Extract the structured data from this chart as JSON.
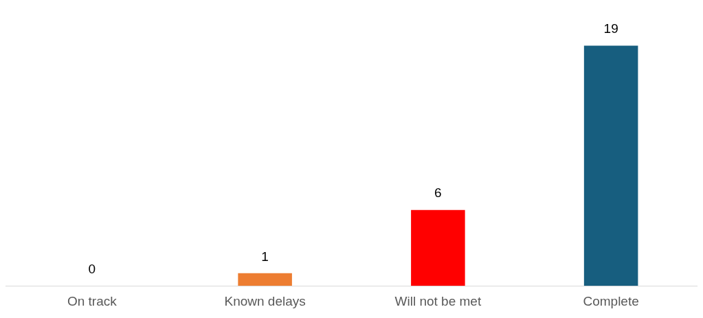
{
  "chart_data": {
    "type": "bar",
    "categories": [
      "On track",
      "Known delays",
      "Will not be met",
      "Complete"
    ],
    "values": [
      0,
      1,
      6,
      19
    ],
    "colors": [
      "#70ad47",
      "#ed7d31",
      "#ff0000",
      "#175e7f"
    ],
    "data_labels": true,
    "grid": false,
    "legend": false
  }
}
